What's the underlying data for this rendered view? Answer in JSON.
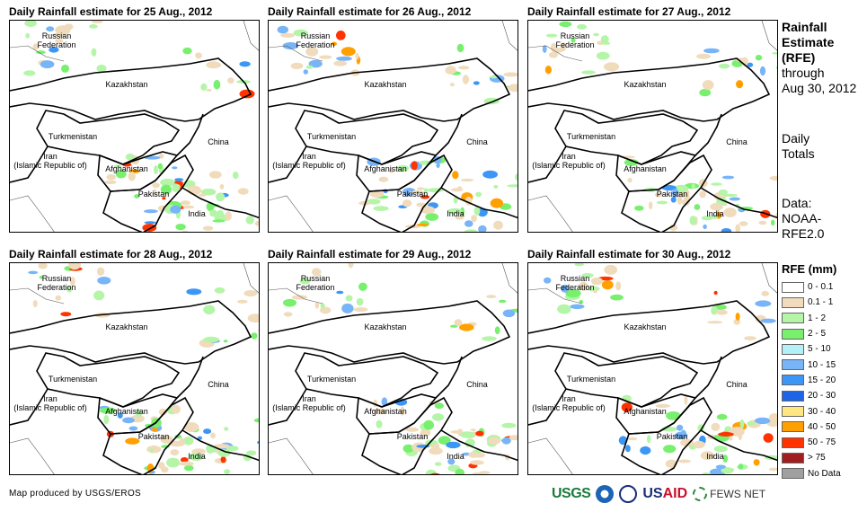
{
  "panels": [
    {
      "title": "Daily Rainfall estimate for 25 Aug., 2012"
    },
    {
      "title": "Daily Rainfall estimate for 26 Aug., 2012"
    },
    {
      "title": "Daily Rainfall estimate for 27 Aug., 2012"
    },
    {
      "title": "Daily Rainfall estimate for 28 Aug., 2012"
    },
    {
      "title": "Daily Rainfall estimate for 29 Aug., 2012"
    },
    {
      "title": "Daily Rainfall estimate for 30 Aug., 2012"
    }
  ],
  "countries": {
    "russia_1": "Russian",
    "russia_2": "Federation",
    "kazakhstan": "Kazakhstan",
    "turkmenistan": "Turkmenistan",
    "iran_1": "Iran",
    "iran_2": "(Islamic Republic of)",
    "afghanistan": "Afghanistan",
    "pakistan": "Pakistan",
    "india": "India",
    "china": "China"
  },
  "side": {
    "title_1": "Rainfall",
    "title_2": "Estimate",
    "title_3": "(RFE)",
    "through_1": "through",
    "through_2": "Aug 30, 2012",
    "daily_1": "Daily",
    "daily_2": "Totals",
    "data_1": "Data:",
    "data_2": "NOAA-",
    "data_3": "RFE2.0"
  },
  "legend": {
    "title": "RFE (mm)",
    "items": [
      {
        "label": "0 - 0.1",
        "color": "#ffffff"
      },
      {
        "label": "0.1 - 1",
        "color": "#f0dcbc"
      },
      {
        "label": "1 - 2",
        "color": "#b4f5a8"
      },
      {
        "label": "2 - 5",
        "color": "#78f06e"
      },
      {
        "label": "5 - 10",
        "color": "#b4f0f8"
      },
      {
        "label": "10 - 15",
        "color": "#78b4f8"
      },
      {
        "label": "15 - 20",
        "color": "#3c96f5"
      },
      {
        "label": "20 - 30",
        "color": "#1e64e6"
      },
      {
        "label": "30 - 40",
        "color": "#ffe682"
      },
      {
        "label": "40 - 50",
        "color": "#ffa000"
      },
      {
        "label": "50 - 75",
        "color": "#ff3200"
      },
      {
        "label": "> 75",
        "color": "#a01e1e"
      },
      {
        "label": "No Data",
        "color": "#a0a0a0"
      }
    ]
  },
  "footer": {
    "credit": "Map produced by USGS/EROS"
  },
  "logos": {
    "usgs": "USGS",
    "usaid_1": "US",
    "usaid_2": "AID",
    "fews": "FEWS NET"
  }
}
